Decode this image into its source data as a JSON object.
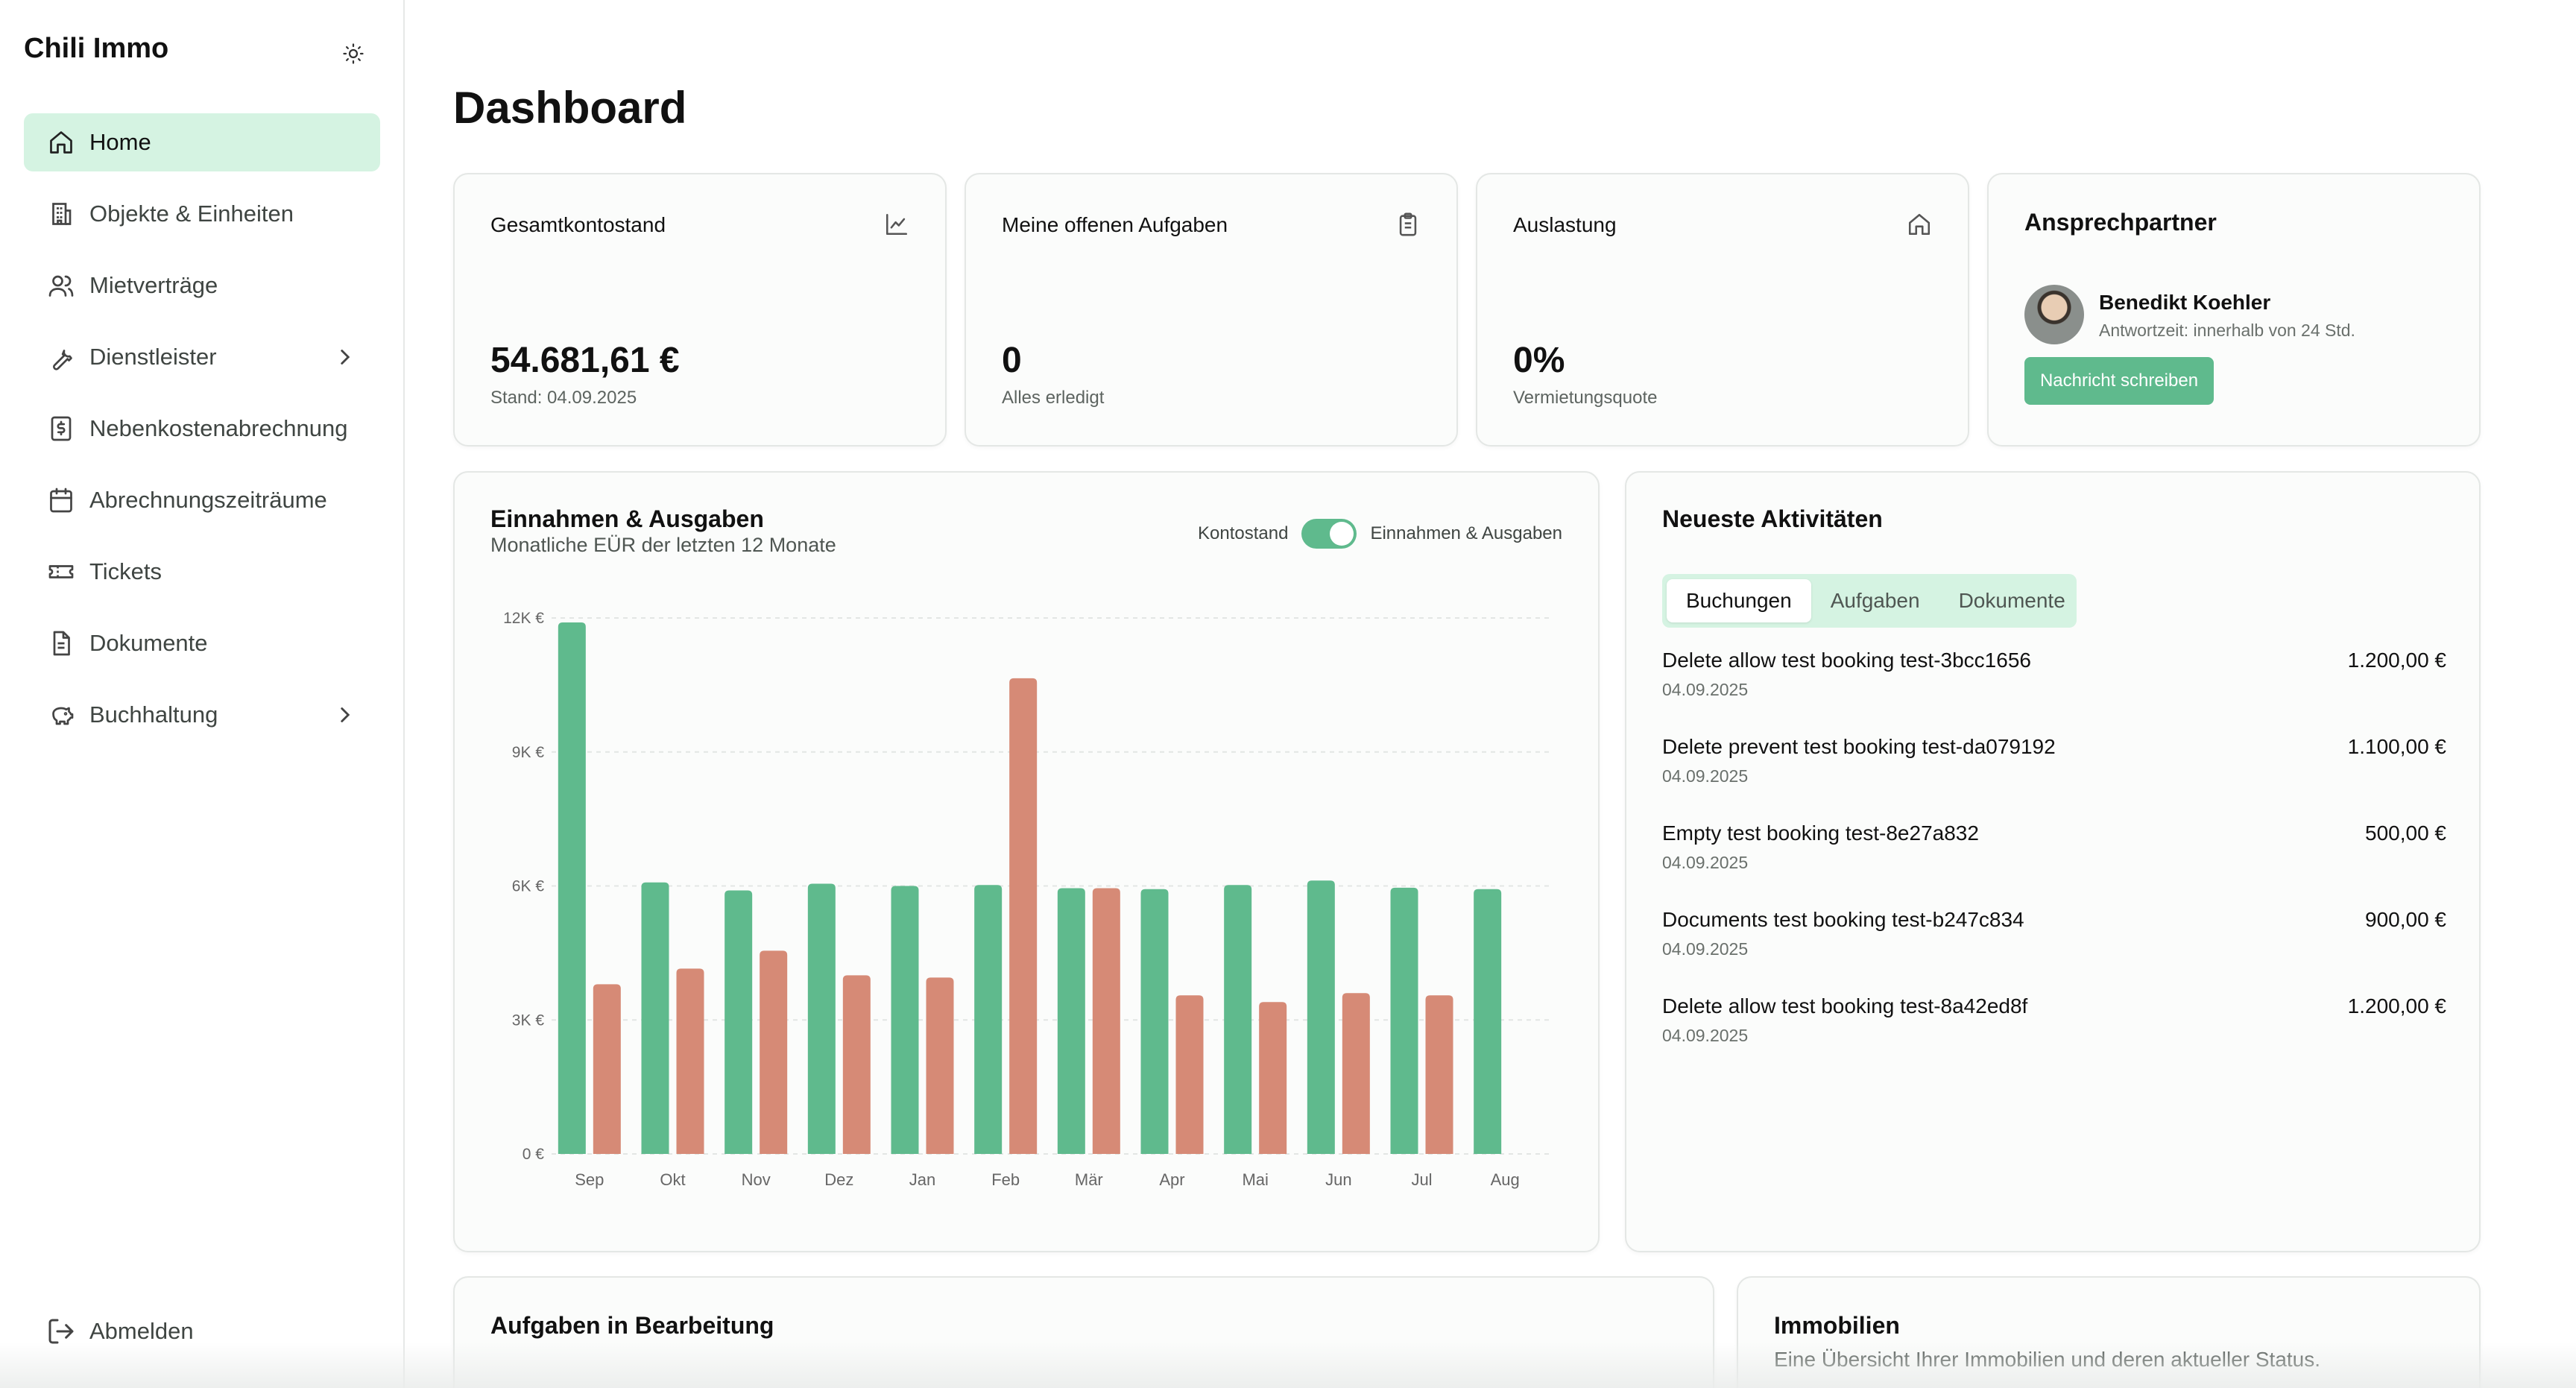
{
  "app": {
    "brand": "Chili Immo"
  },
  "sidebar": {
    "items": [
      {
        "label": "Home",
        "icon": "home-icon",
        "active": true
      },
      {
        "label": "Objekte & Einheiten",
        "icon": "building-icon"
      },
      {
        "label": "Mietverträge",
        "icon": "users-icon"
      },
      {
        "label": "Dienstleister",
        "icon": "wrench-icon",
        "has_submenu": true
      },
      {
        "label": "Nebenkostenabrechnung",
        "icon": "receipt-icon"
      },
      {
        "label": "Abrechnungszeiträume",
        "icon": "calendar-icon"
      },
      {
        "label": "Tickets",
        "icon": "ticket-icon"
      },
      {
        "label": "Dokumente",
        "icon": "document-icon"
      },
      {
        "label": "Buchhaltung",
        "icon": "piggy-bank-icon",
        "has_submenu": true
      }
    ],
    "logout_label": "Abmelden"
  },
  "page": {
    "title": "Dashboard"
  },
  "stats": {
    "balance": {
      "label": "Gesamtkontostand",
      "value": "54.681,61 €",
      "sub": "Stand: 04.09.2025"
    },
    "tasks": {
      "label": "Meine offenen Aufgaben",
      "value": "0",
      "sub": "Alles erledigt"
    },
    "occupancy": {
      "label": "Auslastung",
      "value": "0%",
      "sub": "Vermietungsquote"
    }
  },
  "contact": {
    "title": "Ansprechpartner",
    "name": "Benedikt Koehler",
    "response": "Antwortzeit: innerhalb von 24 Std.",
    "button": "Nachricht schreiben"
  },
  "chart_card": {
    "title": "Einnahmen & Ausgaben",
    "subtitle": "Monatliche EÜR der letzten 12 Monate",
    "toggle_left": "Kontostand",
    "toggle_right": "Einnahmen & Ausgaben"
  },
  "chart_data": {
    "type": "bar",
    "categories": [
      "Sep",
      "Okt",
      "Nov",
      "Dez",
      "Jan",
      "Feb",
      "Mär",
      "Apr",
      "Mai",
      "Jun",
      "Jul",
      "Aug"
    ],
    "series": [
      {
        "values": [
          11900,
          6080,
          5900,
          6050,
          6000,
          6020,
          5950,
          5930,
          6020,
          6120,
          5960,
          5930
        ],
        "color": "#5fba8d"
      },
      {
        "values": [
          3800,
          4150,
          4550,
          4000,
          3950,
          10650,
          5950,
          3550,
          3400,
          3600,
          3550,
          0
        ],
        "color": "#d68a76"
      }
    ],
    "yticks": [
      "0 €",
      "3K €",
      "6K €",
      "9K €",
      "12K €"
    ],
    "ylim": [
      0,
      12000
    ],
    "grid": true
  },
  "activities": {
    "title": "Neueste Aktivitäten",
    "tabs": [
      "Buchungen",
      "Aufgaben",
      "Dokumente"
    ],
    "items": [
      {
        "name": "Delete allow test booking test-3bcc1656",
        "date": "04.09.2025",
        "amount": "1.200,00 €"
      },
      {
        "name": "Delete prevent test booking test-da079192",
        "date": "04.09.2025",
        "amount": "1.100,00 €"
      },
      {
        "name": "Empty test booking test-8e27a832",
        "date": "04.09.2025",
        "amount": "500,00 €"
      },
      {
        "name": "Documents test booking test-b247c834",
        "date": "04.09.2025",
        "amount": "900,00 €"
      },
      {
        "name": "Delete allow test booking test-8a42ed8f",
        "date": "04.09.2025",
        "amount": "1.200,00 €"
      }
    ]
  },
  "tasks_section": {
    "title": "Aufgaben in Bearbeitung"
  },
  "properties_section": {
    "title": "Immobilien",
    "subtitle": "Eine Übersicht Ihrer Immobilien und deren aktueller Status."
  }
}
